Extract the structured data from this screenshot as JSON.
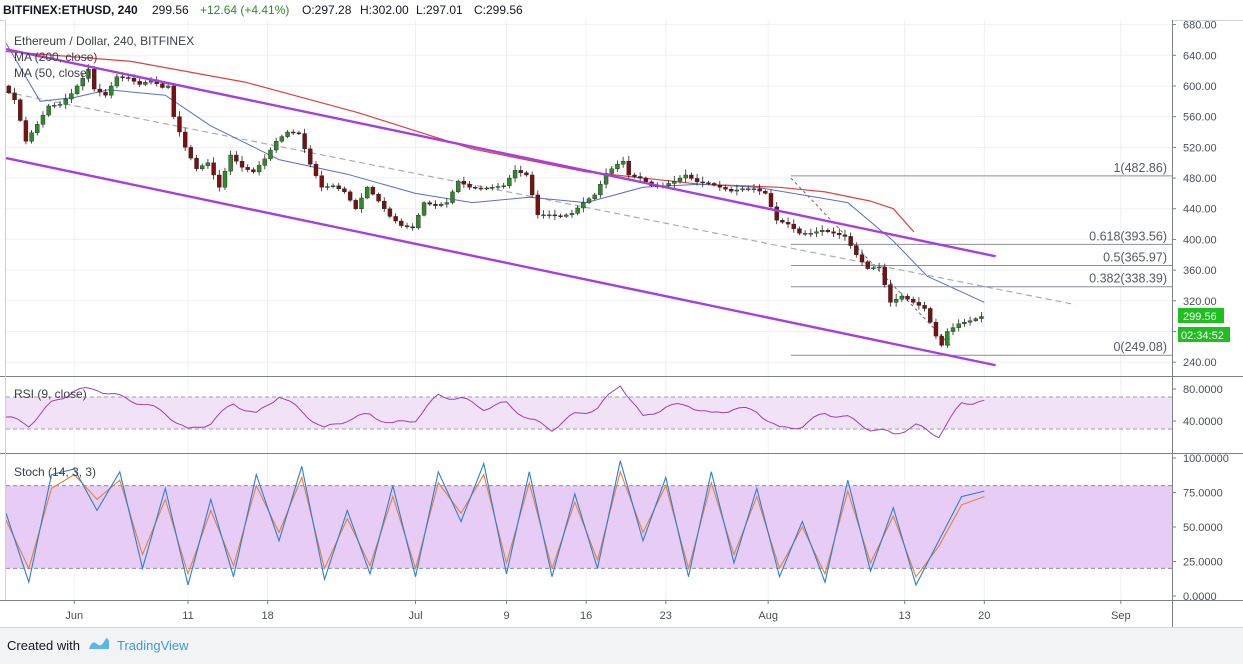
{
  "header": {
    "symbol": "BITFINEX:ETHUSD, 240",
    "last": "299.56",
    "change": "+12.64 (+4.41%)",
    "open": "O:297.28",
    "high": "H:302.00",
    "low": "L:297.01",
    "close": "C:299.56"
  },
  "legend": {
    "title": "Ethereum / Dollar, 240, BITFINEX",
    "ma200": "MA (200, close)",
    "ma50": "MA (50, close)",
    "rsi": "RSI (9, close)",
    "stoch": "Stoch (14, 3, 3)"
  },
  "footer": {
    "created_with": "Created with",
    "brand": "TradingView"
  },
  "colors": {
    "up": "#2f8a2a",
    "down": "#7a1010",
    "ma200": "#e04040",
    "ma50": "#5a6ecb",
    "channel": "#a63fe0",
    "rsi": "#9c3fb5",
    "stoch_k": "#2a7fd4",
    "stoch_d": "#e8803a",
    "last_price_bg": "#1fbf1f"
  },
  "chart_data": {
    "type": "candlestick",
    "symbol": "ETHUSD",
    "timeframe": "240",
    "y_ticks": [
      240,
      280,
      320,
      360,
      400,
      440,
      480,
      520,
      560,
      600,
      640,
      680
    ],
    "y_tick_labels": [
      "240.00",
      "280.00",
      "320.00",
      "360.00",
      "400.00",
      "440.00",
      "480.00",
      "520.00",
      "560.00",
      "600.00",
      "640.00",
      "680.00"
    ],
    "ylim": [
      222,
      686
    ],
    "x_tick_labels": [
      "Jun",
      "11",
      "18",
      "Jul",
      "9",
      "16",
      "23",
      "Aug",
      "13",
      "20",
      "Sep"
    ],
    "x_tick_days": [
      0,
      10,
      17,
      30,
      38,
      45,
      52,
      61,
      73,
      80,
      92
    ],
    "xlim_days": [
      -6,
      96.5
    ],
    "last_price": "299.56",
    "countdown": "02:34:52",
    "price_path": [
      [
        -6,
        600
      ],
      [
        -5,
        582
      ],
      [
        -4,
        528
      ],
      [
        -3,
        550
      ],
      [
        -2,
        574
      ],
      [
        -1,
        576
      ],
      [
        0,
        590
      ],
      [
        1,
        610
      ],
      [
        1.5,
        622
      ],
      [
        2,
        596
      ],
      [
        3,
        588
      ],
      [
        4,
        612
      ],
      [
        5,
        610
      ],
      [
        6,
        602
      ],
      [
        7,
        608
      ],
      [
        8,
        598
      ],
      [
        8.5,
        600
      ],
      [
        9,
        560
      ],
      [
        10,
        520
      ],
      [
        11,
        492
      ],
      [
        12,
        500
      ],
      [
        13,
        468
      ],
      [
        14,
        510
      ],
      [
        15,
        494
      ],
      [
        16,
        488
      ],
      [
        17,
        505
      ],
      [
        18,
        528
      ],
      [
        19,
        540
      ],
      [
        20,
        538
      ],
      [
        21,
        498
      ],
      [
        22,
        468
      ],
      [
        23,
        470
      ],
      [
        24,
        462
      ],
      [
        25,
        440
      ],
      [
        26,
        468
      ],
      [
        27,
        450
      ],
      [
        28,
        430
      ],
      [
        28.5,
        424
      ],
      [
        29,
        418
      ],
      [
        30,
        415
      ],
      [
        31,
        448
      ],
      [
        32,
        444
      ],
      [
        33,
        448
      ],
      [
        34,
        476
      ],
      [
        35,
        468
      ],
      [
        36,
        466
      ],
      [
        37,
        468
      ],
      [
        38,
        470
      ],
      [
        39,
        490
      ],
      [
        40,
        484
      ],
      [
        41,
        432
      ],
      [
        42,
        432
      ],
      [
        43,
        430
      ],
      [
        44,
        434
      ],
      [
        45,
        448
      ],
      [
        46,
        458
      ],
      [
        47,
        486
      ],
      [
        48,
        498
      ],
      [
        48.5,
        502
      ],
      [
        49,
        484
      ],
      [
        50,
        480
      ],
      [
        51,
        470
      ],
      [
        52,
        470
      ],
      [
        53,
        476
      ],
      [
        54,
        484
      ],
      [
        55,
        475
      ],
      [
        56,
        473
      ],
      [
        57,
        468
      ],
      [
        58,
        463
      ],
      [
        59,
        466
      ],
      [
        60,
        466
      ],
      [
        61,
        460
      ],
      [
        62,
        425
      ],
      [
        63,
        420
      ],
      [
        64,
        408
      ],
      [
        65,
        408
      ],
      [
        66,
        412
      ],
      [
        67,
        408
      ],
      [
        68,
        404
      ],
      [
        69,
        380
      ],
      [
        70,
        362
      ],
      [
        71,
        364
      ],
      [
        72,
        318
      ],
      [
        73,
        326
      ],
      [
        74,
        318
      ],
      [
        75,
        310
      ],
      [
        76,
        274
      ],
      [
        76.5,
        262
      ],
      [
        77,
        280
      ],
      [
        78,
        290
      ],
      [
        79,
        294
      ],
      [
        80,
        299.56
      ]
    ],
    "ma200_path": [
      [
        -6,
        645
      ],
      [
        5,
        632
      ],
      [
        15,
        605
      ],
      [
        25,
        565
      ],
      [
        35,
        518
      ],
      [
        45,
        488
      ],
      [
        55,
        472
      ],
      [
        62,
        468
      ],
      [
        66,
        462
      ],
      [
        70,
        450
      ],
      [
        72,
        440
      ],
      [
        73.8,
        410
      ]
    ],
    "ma50_path": [
      [
        -6,
        656
      ],
      [
        -3,
        580
      ],
      [
        0,
        585
      ],
      [
        3,
        595
      ],
      [
        8,
        588
      ],
      [
        12,
        548
      ],
      [
        18,
        504
      ],
      [
        24,
        485
      ],
      [
        30,
        460
      ],
      [
        35,
        448
      ],
      [
        40,
        455
      ],
      [
        45,
        448
      ],
      [
        50,
        468
      ],
      [
        55,
        472
      ],
      [
        60,
        468
      ],
      [
        64,
        458
      ],
      [
        68,
        448
      ],
      [
        72,
        398
      ],
      [
        75,
        352
      ],
      [
        80,
        318
      ]
    ],
    "channel_upper": [
      [
        -6,
        648
      ],
      [
        81,
        378
      ]
    ],
    "channel_lower": [
      [
        -6,
        506
      ],
      [
        81,
        236
      ]
    ],
    "dashed_trend_1": [
      [
        -6,
        592
      ],
      [
        88,
        315
      ]
    ],
    "dashed_trend_2": [
      [
        63,
        480
      ],
      [
        77,
        262
      ]
    ],
    "fib_levels": [
      {
        "label": "1(482.86)",
        "value": 482.86
      },
      {
        "label": "0.618(393.56)",
        "value": 393.56
      },
      {
        "label": "0.5(365.97)",
        "value": 365.97
      },
      {
        "label": "0.382(338.39)",
        "value": 338.39
      },
      {
        "label": "0(249.08)",
        "value": 249.08
      }
    ],
    "rsi": {
      "ylim": [
        0,
        95
      ],
      "tick_labels": [
        "40.0000",
        "80.0000"
      ],
      "tick_values": [
        40,
        80
      ],
      "band": [
        30,
        70
      ],
      "path": [
        [
          -6,
          45
        ],
        [
          -4,
          35
        ],
        [
          -2,
          62
        ],
        [
          0,
          78
        ],
        [
          2,
          80
        ],
        [
          4,
          70
        ],
        [
          6,
          62
        ],
        [
          8,
          50
        ],
        [
          10,
          28
        ],
        [
          12,
          38
        ],
        [
          14,
          62
        ],
        [
          16,
          48
        ],
        [
          18,
          72
        ],
        [
          20,
          52
        ],
        [
          22,
          30
        ],
        [
          24,
          42
        ],
        [
          26,
          48
        ],
        [
          28,
          36
        ],
        [
          30,
          42
        ],
        [
          32,
          72
        ],
        [
          34,
          68
        ],
        [
          36,
          56
        ],
        [
          38,
          62
        ],
        [
          40,
          42
        ],
        [
          42,
          30
        ],
        [
          44,
          48
        ],
        [
          46,
          56
        ],
        [
          48,
          86
        ],
        [
          50,
          44
        ],
        [
          52,
          58
        ],
        [
          54,
          60
        ],
        [
          56,
          48
        ],
        [
          58,
          56
        ],
        [
          60,
          52
        ],
        [
          62,
          30
        ],
        [
          64,
          34
        ],
        [
          66,
          50
        ],
        [
          68,
          44
        ],
        [
          70,
          30
        ],
        [
          72,
          24
        ],
        [
          74,
          34
        ],
        [
          76,
          22
        ],
        [
          78,
          62
        ],
        [
          80,
          66
        ]
      ]
    },
    "stoch": {
      "ylim": [
        0,
        100
      ],
      "tick_labels": [
        "0.0000",
        "25.0000",
        "50.0000",
        "75.0000",
        "100.0000"
      ],
      "tick_values": [
        0,
        25,
        50,
        75,
        100
      ],
      "band": [
        20,
        80
      ],
      "k_path": [
        [
          -6,
          60
        ],
        [
          -4,
          10
        ],
        [
          -2,
          88
        ],
        [
          0,
          92
        ],
        [
          2,
          62
        ],
        [
          4,
          90
        ],
        [
          6,
          20
        ],
        [
          8,
          78
        ],
        [
          10,
          8
        ],
        [
          12,
          70
        ],
        [
          14,
          14
        ],
        [
          16,
          88
        ],
        [
          18,
          40
        ],
        [
          20,
          94
        ],
        [
          22,
          12
        ],
        [
          24,
          62
        ],
        [
          26,
          16
        ],
        [
          28,
          80
        ],
        [
          30,
          14
        ],
        [
          32,
          90
        ],
        [
          34,
          54
        ],
        [
          36,
          96
        ],
        [
          38,
          16
        ],
        [
          40,
          90
        ],
        [
          42,
          14
        ],
        [
          44,
          74
        ],
        [
          46,
          20
        ],
        [
          48,
          98
        ],
        [
          50,
          40
        ],
        [
          52,
          86
        ],
        [
          54,
          14
        ],
        [
          56,
          90
        ],
        [
          58,
          24
        ],
        [
          60,
          78
        ],
        [
          62,
          14
        ],
        [
          64,
          54
        ],
        [
          66,
          10
        ],
        [
          68,
          84
        ],
        [
          70,
          18
        ],
        [
          72,
          64
        ],
        [
          74,
          8
        ],
        [
          76,
          40
        ],
        [
          78,
          72
        ],
        [
          80,
          76
        ]
      ],
      "d_path": [
        [
          -6,
          55
        ],
        [
          -4,
          20
        ],
        [
          -2,
          78
        ],
        [
          0,
          88
        ],
        [
          2,
          70
        ],
        [
          4,
          84
        ],
        [
          6,
          30
        ],
        [
          8,
          70
        ],
        [
          10,
          16
        ],
        [
          12,
          62
        ],
        [
          14,
          22
        ],
        [
          16,
          80
        ],
        [
          18,
          46
        ],
        [
          20,
          86
        ],
        [
          22,
          20
        ],
        [
          24,
          56
        ],
        [
          26,
          22
        ],
        [
          28,
          72
        ],
        [
          30,
          20
        ],
        [
          32,
          82
        ],
        [
          34,
          60
        ],
        [
          36,
          88
        ],
        [
          38,
          24
        ],
        [
          40,
          82
        ],
        [
          42,
          20
        ],
        [
          44,
          68
        ],
        [
          46,
          26
        ],
        [
          48,
          90
        ],
        [
          50,
          46
        ],
        [
          52,
          80
        ],
        [
          54,
          20
        ],
        [
          56,
          82
        ],
        [
          58,
          30
        ],
        [
          60,
          72
        ],
        [
          62,
          20
        ],
        [
          64,
          50
        ],
        [
          66,
          16
        ],
        [
          68,
          76
        ],
        [
          70,
          24
        ],
        [
          72,
          58
        ],
        [
          74,
          14
        ],
        [
          76,
          36
        ],
        [
          78,
          66
        ],
        [
          80,
          72
        ]
      ]
    }
  }
}
